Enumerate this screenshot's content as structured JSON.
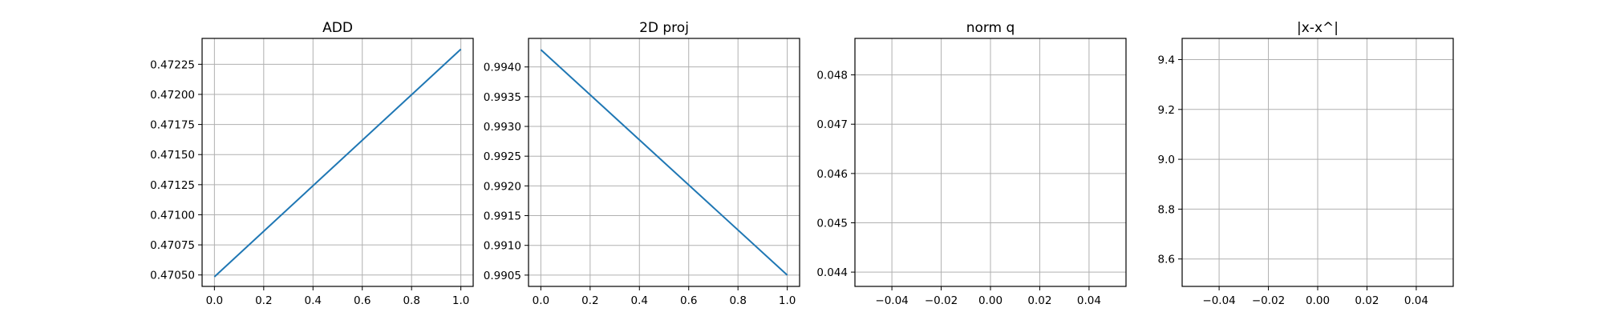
{
  "chart_data": [
    {
      "type": "line",
      "title": "ADD",
      "xlabel": "",
      "ylabel": "",
      "xlim": [
        -0.05,
        1.05
      ],
      "ylim": [
        0.470405,
        0.472465
      ],
      "xticks": [
        0.0,
        0.2,
        0.4,
        0.6,
        0.8,
        1.0
      ],
      "xtick_labels": [
        "0.0",
        "0.2",
        "0.4",
        "0.6",
        "0.8",
        "1.0"
      ],
      "yticks": [
        0.4705,
        0.47075,
        0.471,
        0.47125,
        0.4715,
        0.47175,
        0.472,
        0.47225
      ],
      "ytick_labels": [
        "0.47050",
        "0.47075",
        "0.47100",
        "0.47125",
        "0.47150",
        "0.47175",
        "0.47200",
        "0.47225"
      ],
      "grid": true,
      "color": "#1f77b4",
      "x": [
        0,
        1
      ],
      "y": [
        0.470485,
        0.472375
      ]
    },
    {
      "type": "line",
      "title": "2D proj",
      "xlabel": "",
      "ylabel": "",
      "xlim": [
        -0.05,
        1.05
      ],
      "ylim": [
        0.99031,
        0.99448
      ],
      "xticks": [
        0.0,
        0.2,
        0.4,
        0.6,
        0.8,
        1.0
      ],
      "xtick_labels": [
        "0.0",
        "0.2",
        "0.4",
        "0.6",
        "0.8",
        "1.0"
      ],
      "yticks": [
        0.9905,
        0.991,
        0.9915,
        0.992,
        0.9925,
        0.993,
        0.9935,
        0.994
      ],
      "ytick_labels": [
        "0.9905",
        "0.9910",
        "0.9915",
        "0.9920",
        "0.9925",
        "0.9930",
        "0.9935",
        "0.9940"
      ],
      "grid": true,
      "color": "#1f77b4",
      "x": [
        0,
        1
      ],
      "y": [
        0.99429,
        0.9905
      ]
    },
    {
      "type": "line",
      "title": "norm q",
      "xlabel": "",
      "ylabel": "",
      "xlim": [
        -0.055,
        0.055
      ],
      "ylim": [
        0.04371,
        0.04874
      ],
      "xticks": [
        -0.04,
        -0.02,
        0.0,
        0.02,
        0.04
      ],
      "xtick_labels": [
        "−0.04",
        "−0.02",
        "0.00",
        "0.02",
        "0.04"
      ],
      "yticks": [
        0.044,
        0.045,
        0.046,
        0.047,
        0.048
      ],
      "ytick_labels": [
        "0.044",
        "0.045",
        "0.046",
        "0.047",
        "0.048"
      ],
      "grid": true,
      "color": "#1f77b4",
      "x": [],
      "y": []
    },
    {
      "type": "line",
      "title": "|x-x^|",
      "xlabel": "",
      "ylabel": "",
      "xlim": [
        -0.055,
        0.055
      ],
      "ylim": [
        8.49,
        9.485
      ],
      "xticks": [
        -0.04,
        -0.02,
        0.0,
        0.02,
        0.04
      ],
      "xtick_labels": [
        "−0.04",
        "−0.02",
        "0.00",
        "0.02",
        "0.04"
      ],
      "yticks": [
        8.6,
        8.8,
        9.0,
        9.2,
        9.4
      ],
      "ytick_labels": [
        "8.6",
        "8.8",
        "9.0",
        "9.2",
        "9.4"
      ],
      "grid": true,
      "color": "#1f77b4",
      "x": [],
      "y": []
    }
  ]
}
